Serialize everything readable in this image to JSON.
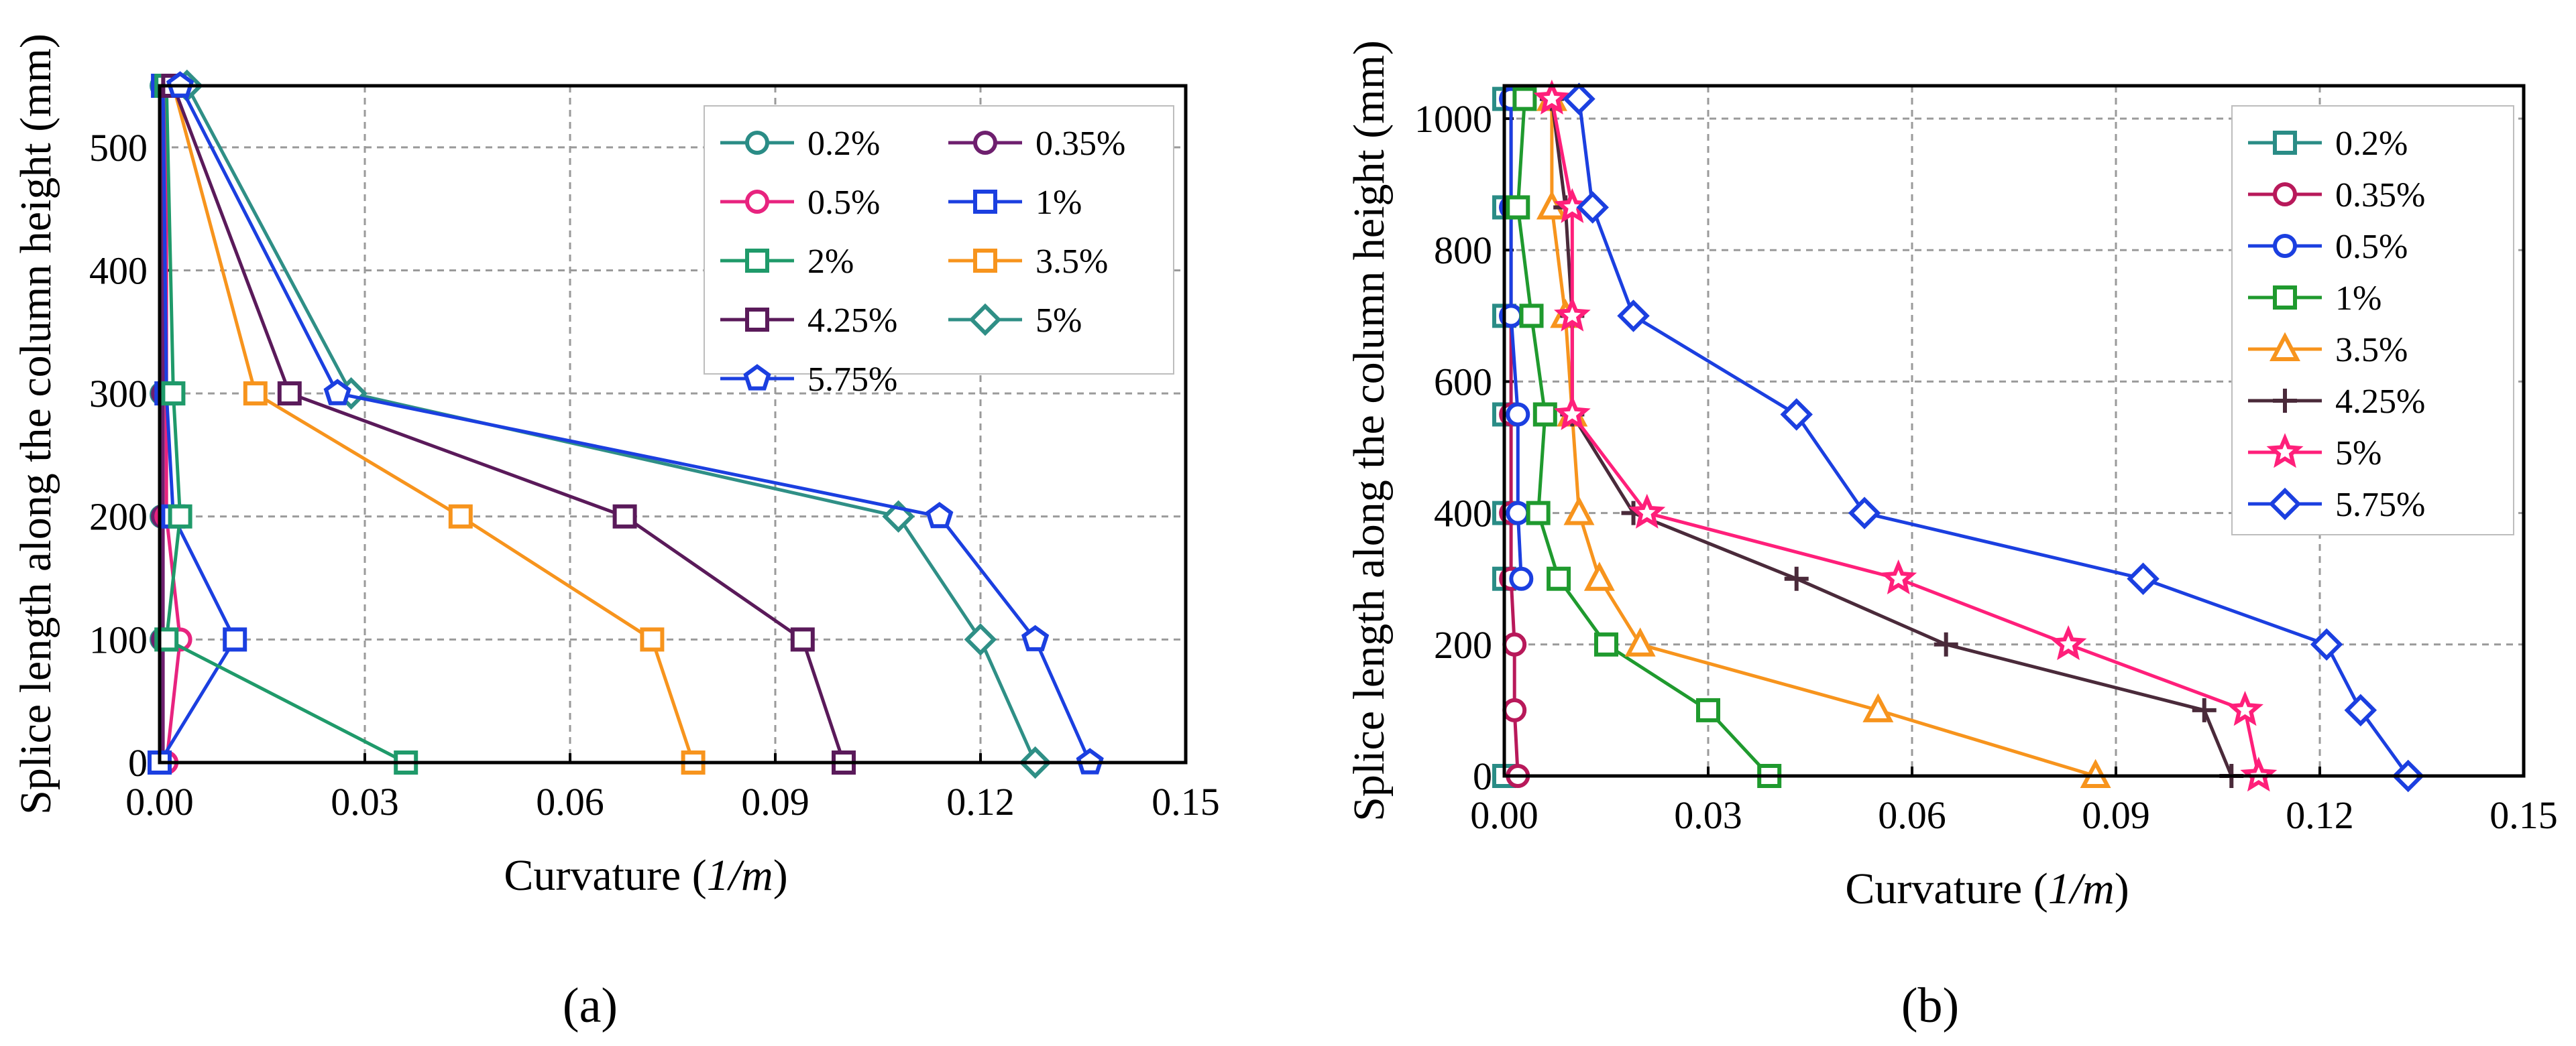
{
  "chart_data": [
    {
      "type": "line",
      "caption": "(a)",
      "xlabel": "Curvature (1/m)",
      "xlabel_parts": {
        "text": "Curvature (",
        "italic": "1/m",
        "close": ")"
      },
      "ylabel": "Splice length along the column height (mm)",
      "xlim": [
        0,
        0.15
      ],
      "ylim": [
        0,
        550
      ],
      "xticks": [
        "0.00",
        "0.03",
        "0.06",
        "0.09",
        "0.12",
        "0.15"
      ],
      "yticks": [
        "0",
        "100",
        "200",
        "300",
        "400",
        "500"
      ],
      "grid": true,
      "legend_position": "top-right",
      "legend_columns": 2,
      "series": [
        {
          "name": "0.2%",
          "color": "#2a8c86",
          "marker": "circle",
          "x": [
            0.0003,
            0.0003,
            0.0003,
            0.0003,
            0.0003
          ],
          "y": [
            0,
            100,
            200,
            300,
            550
          ]
        },
        {
          "name": "0.35%",
          "color": "#6e1f6e",
          "marker": "circle",
          "x": [
            0.0005,
            0.0005,
            0.0005,
            0.0005,
            0.0005
          ],
          "y": [
            0,
            100,
            200,
            300,
            550
          ]
        },
        {
          "name": "0.5%",
          "color": "#e8237f",
          "marker": "circle",
          "x": [
            0.001,
            0.003,
            0.001,
            0.001,
            0.001
          ],
          "y": [
            0,
            100,
            200,
            300,
            550
          ]
        },
        {
          "name": "1%",
          "color": "#1b3fe0",
          "marker": "square",
          "x": [
            0.0,
            0.011,
            0.002,
            0.001,
            0.0005
          ],
          "y": [
            0,
            100,
            200,
            300,
            550
          ]
        },
        {
          "name": "2%",
          "color": "#1f9a6a",
          "marker": "square",
          "x": [
            0.036,
            0.001,
            0.003,
            0.002,
            0.001
          ],
          "y": [
            0,
            100,
            200,
            300,
            550
          ]
        },
        {
          "name": "3.5%",
          "color": "#f7941d",
          "marker": "square",
          "x": [
            0.078,
            0.072,
            0.044,
            0.014,
            0.002
          ],
          "y": [
            0,
            100,
            200,
            300,
            550
          ]
        },
        {
          "name": "4.25%",
          "color": "#5a1a5a",
          "marker": "square",
          "x": [
            0.1,
            0.094,
            0.068,
            0.019,
            0.002
          ],
          "y": [
            0,
            100,
            200,
            300,
            550
          ]
        },
        {
          "name": "5%",
          "color": "#2f8f86",
          "marker": "diamond",
          "x": [
            0.128,
            0.12,
            0.108,
            0.028,
            0.004
          ],
          "y": [
            0,
            100,
            200,
            300,
            550
          ]
        },
        {
          "name": "5.75%",
          "color": "#1b3fe0",
          "marker": "pentagon",
          "x": [
            0.136,
            0.128,
            0.114,
            0.026,
            0.003
          ],
          "y": [
            0,
            100,
            200,
            300,
            550
          ]
        }
      ]
    },
    {
      "type": "line",
      "caption": "(b)",
      "xlabel": "Curvature (1/m)",
      "xlabel_parts": {
        "text": "Curvature (",
        "italic": "1/m",
        "close": ")"
      },
      "ylabel": "Splice length along the column height (mm)",
      "xlim": [
        0,
        0.15
      ],
      "ylim": [
        0,
        1050
      ],
      "xticks": [
        "0.00",
        "0.03",
        "0.06",
        "0.09",
        "0.12",
        "0.15"
      ],
      "yticks": [
        "0",
        "200",
        "400",
        "600",
        "800",
        "1000"
      ],
      "grid": true,
      "legend_position": "top-right",
      "legend_columns": 1,
      "series": [
        {
          "name": "0.2%",
          "color": "#2a8c86",
          "marker": "square",
          "x": [
            0.0,
            0.0,
            0.0,
            0.0,
            0.0,
            0.0,
            0.0
          ],
          "y": [
            0,
            300,
            400,
            550,
            700,
            865,
            1030
          ]
        },
        {
          "name": "0.35%",
          "color": "#b8195a",
          "marker": "circle",
          "x": [
            0.002,
            0.0015,
            0.0015,
            0.001,
            0.001,
            0.001,
            0.001,
            0.001,
            0.001
          ],
          "y": [
            0,
            100,
            200,
            300,
            400,
            550,
            700,
            865,
            1030
          ]
        },
        {
          "name": "0.5%",
          "color": "#1b3fe0",
          "marker": "circle",
          "x": [
            0.0025,
            0.002,
            0.002,
            0.001,
            0.001,
            0.001
          ],
          "y": [
            300,
            400,
            550,
            700,
            865,
            1030
          ]
        },
        {
          "name": "1%",
          "color": "#1f9a2e",
          "marker": "square",
          "x": [
            0.039,
            0.03,
            0.015,
            0.008,
            0.005,
            0.006,
            0.004,
            0.002,
            0.003
          ],
          "y": [
            0,
            100,
            200,
            300,
            400,
            550,
            700,
            865,
            1030
          ]
        },
        {
          "name": "3.5%",
          "color": "#f7941d",
          "marker": "triangle",
          "x": [
            0.087,
            0.055,
            0.02,
            0.014,
            0.011,
            0.01,
            0.009,
            0.007,
            0.007
          ],
          "y": [
            0,
            100,
            200,
            300,
            400,
            550,
            700,
            865,
            1030
          ]
        },
        {
          "name": "4.25%",
          "color": "#4a2a3a",
          "marker": "plus",
          "x": [
            0.107,
            0.103,
            0.065,
            0.043,
            0.019,
            0.01,
            0.01,
            0.009,
            0.007
          ],
          "y": [
            0,
            100,
            200,
            300,
            400,
            550,
            700,
            865,
            1030
          ]
        },
        {
          "name": "5%",
          "color": "#ff1f7a",
          "marker": "star",
          "x": [
            0.111,
            0.109,
            0.083,
            0.058,
            0.021,
            0.01,
            0.01,
            0.01,
            0.007
          ],
          "y": [
            0,
            100,
            200,
            300,
            400,
            550,
            700,
            865,
            1030
          ]
        },
        {
          "name": "5.75%",
          "color": "#1b3fe0",
          "marker": "diamond",
          "x": [
            0.133,
            0.126,
            0.121,
            0.094,
            0.053,
            0.043,
            0.019,
            0.013,
            0.011
          ],
          "y": [
            0,
            100,
            200,
            300,
            400,
            550,
            700,
            865,
            1030
          ]
        }
      ]
    }
  ]
}
